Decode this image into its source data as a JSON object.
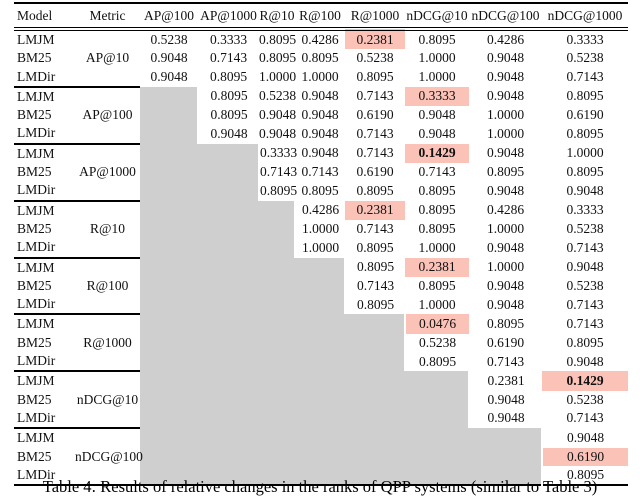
{
  "caption": "Table 4: Results of relative changes in the ranks of QPP systems (similar to Table 3)",
  "colors": {
    "gray_cell": "#cfcfcf",
    "highlight_cell": "#fbc2b8"
  },
  "table": {
    "columns": [
      "Model",
      "Metric",
      "AP@100",
      "AP@1000",
      "R@10",
      "R@100",
      "R@1000",
      "nDCG@10",
      "nDCG@100",
      "nDCG@1000"
    ],
    "groups": [
      {
        "metric": "AP@10",
        "gray_cols": 0,
        "rows": [
          {
            "model": "LMJM",
            "values": [
              "0.5238",
              "0.3333",
              "0.8095",
              "0.4286",
              "0.2381",
              "0.8095",
              "0.4286",
              "0.3333"
            ],
            "highlight": 4,
            "bold": false
          },
          {
            "model": "BM25",
            "values": [
              "0.9048",
              "0.7143",
              "0.8095",
              "0.8095",
              "0.5238",
              "1.0000",
              "0.9048",
              "0.5238"
            ],
            "highlight": -1,
            "bold": false
          },
          {
            "model": "LMDir",
            "values": [
              "0.9048",
              "0.8095",
              "1.0000",
              "1.0000",
              "0.8095",
              "1.0000",
              "0.9048",
              "0.7143"
            ],
            "highlight": -1,
            "bold": false
          }
        ]
      },
      {
        "metric": "AP@100",
        "gray_cols": 1,
        "rows": [
          {
            "model": "LMJM",
            "values": [
              "0.8095",
              "0.5238",
              "0.9048",
              "0.7143",
              "0.3333",
              "0.9048",
              "0.8095"
            ],
            "highlight": 4,
            "bold": false
          },
          {
            "model": "BM25",
            "values": [
              "0.8095",
              "0.9048",
              "0.9048",
              "0.6190",
              "0.9048",
              "1.0000",
              "0.6190"
            ],
            "highlight": -1,
            "bold": false
          },
          {
            "model": "LMDir",
            "values": [
              "0.9048",
              "0.9048",
              "0.9048",
              "0.7143",
              "0.9048",
              "1.0000",
              "0.8095"
            ],
            "highlight": -1,
            "bold": false
          }
        ]
      },
      {
        "metric": "AP@1000",
        "gray_cols": 2,
        "rows": [
          {
            "model": "LMJM",
            "values": [
              "0.3333",
              "0.9048",
              "0.7143",
              "0.1429",
              "0.9048",
              "1.0000"
            ],
            "highlight": 3,
            "bold": true
          },
          {
            "model": "BM25",
            "values": [
              "0.7143",
              "0.7143",
              "0.6190",
              "0.7143",
              "0.8095",
              "0.8095"
            ],
            "highlight": -1,
            "bold": false
          },
          {
            "model": "LMDir",
            "values": [
              "0.8095",
              "0.8095",
              "0.8095",
              "0.8095",
              "0.9048",
              "0.9048"
            ],
            "highlight": -1,
            "bold": false
          }
        ]
      },
      {
        "metric": "R@10",
        "gray_cols": 3,
        "rows": [
          {
            "model": "LMJM",
            "values": [
              "0.4286",
              "0.2381",
              "0.8095",
              "0.4286",
              "0.3333"
            ],
            "highlight": 1,
            "bold": false
          },
          {
            "model": "BM25",
            "values": [
              "1.0000",
              "0.7143",
              "0.8095",
              "1.0000",
              "0.5238"
            ],
            "highlight": -1,
            "bold": false
          },
          {
            "model": "LMDir",
            "values": [
              "1.0000",
              "0.8095",
              "1.0000",
              "0.9048",
              "0.7143"
            ],
            "highlight": -1,
            "bold": false
          }
        ]
      },
      {
        "metric": "R@100",
        "gray_cols": 4,
        "rows": [
          {
            "model": "LMJM",
            "values": [
              "0.8095",
              "0.2381",
              "1.0000",
              "0.9048"
            ],
            "highlight": 1,
            "bold": false
          },
          {
            "model": "BM25",
            "values": [
              "0.7143",
              "0.8095",
              "0.9048",
              "0.5238"
            ],
            "highlight": -1,
            "bold": false
          },
          {
            "model": "LMDir",
            "values": [
              "0.8095",
              "1.0000",
              "0.9048",
              "0.7143"
            ],
            "highlight": -1,
            "bold": false
          }
        ]
      },
      {
        "metric": "R@1000",
        "gray_cols": 5,
        "rows": [
          {
            "model": "LMJM",
            "values": [
              "0.0476",
              "0.8095",
              "0.7143"
            ],
            "highlight": 0,
            "bold": false
          },
          {
            "model": "BM25",
            "values": [
              "0.5238",
              "0.6190",
              "0.8095"
            ],
            "highlight": -1,
            "bold": false
          },
          {
            "model": "LMDir",
            "values": [
              "0.8095",
              "0.7143",
              "0.9048"
            ],
            "highlight": -1,
            "bold": false
          }
        ]
      },
      {
        "metric": "nDCG@10",
        "gray_cols": 6,
        "rows": [
          {
            "model": "LMJM",
            "values": [
              "0.2381",
              "0.1429"
            ],
            "highlight": 1,
            "bold": true
          },
          {
            "model": "BM25",
            "values": [
              "0.9048",
              "0.5238"
            ],
            "highlight": -1,
            "bold": false
          },
          {
            "model": "LMDir",
            "values": [
              "0.9048",
              "0.7143"
            ],
            "highlight": -1,
            "bold": false
          }
        ]
      },
      {
        "metric": "nDCG@100",
        "gray_cols": 7,
        "rows": [
          {
            "model": "LMJM",
            "values": [
              "0.9048"
            ],
            "highlight": -1,
            "bold": false
          },
          {
            "model": "BM25",
            "values": [
              "0.6190"
            ],
            "highlight": 0,
            "bold": false
          },
          {
            "model": "LMDir",
            "values": [
              "0.8095"
            ],
            "highlight": -1,
            "bold": false
          }
        ]
      }
    ]
  }
}
